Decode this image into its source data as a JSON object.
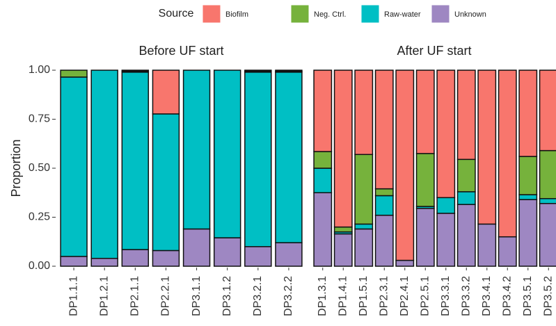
{
  "chart_data": {
    "type": "bar",
    "stacked": true,
    "legend_title": "Source",
    "ylabel": "Proportion",
    "ylim": [
      0,
      1
    ],
    "yticks": [
      {
        "value": 0,
        "label": "0.00"
      },
      {
        "value": 0.25,
        "label": "0.25"
      },
      {
        "value": 0.5,
        "label": "0.50"
      },
      {
        "value": 0.75,
        "label": "0.75"
      },
      {
        "value": 1,
        "label": "1.00"
      }
    ],
    "series": [
      {
        "name": "Biofilm",
        "color": "#f8766d"
      },
      {
        "name": "Neg. Ctrl.",
        "color": "#76b23c"
      },
      {
        "name": "Raw-water",
        "color": "#00bfc4"
      },
      {
        "name": "Unknown",
        "color": "#9e87c2"
      }
    ],
    "facets": [
      {
        "title": "Before UF start",
        "categories": [
          "DP1.1.1",
          "DP1.2.1",
          "DP2.1.1",
          "DP2.2.1",
          "DP3.1.1",
          "DP3.1.2",
          "DP3.2.1",
          "DP3.2.2"
        ],
        "series": [
          {
            "values": [
              0,
              0,
              0.005,
              0.223,
              0,
              0,
              0.005,
              0.005
            ]
          },
          {
            "values": [
              0.035,
              0,
              0.005,
              0,
              0,
              0,
              0.005,
              0.005
            ]
          },
          {
            "values": [
              0.915,
              0.96,
              0.905,
              0.697,
              0.81,
              0.855,
              0.89,
              0.87
            ]
          },
          {
            "values": [
              0.05,
              0.04,
              0.085,
              0.08,
              0.19,
              0.145,
              0.1,
              0.12
            ]
          }
        ]
      },
      {
        "title": "After UF start",
        "categories": [
          "DP1.3.1",
          "DP1.4.1",
          "DP1.5.1",
          "DP2.3.1",
          "DP2.4.1",
          "DP2.5.1",
          "DP3.3.1",
          "DP3.3.2",
          "DP3.4.1",
          "DP3.4.2",
          "DP3.5.1",
          "DP3.5.2"
        ],
        "series": [
          {
            "values": [
              0.415,
              0.8,
              0.43,
              0.605,
              0.97,
              0.425,
              0.65,
              0.455,
              0.785,
              0.85,
              0.44,
              0.41
            ]
          },
          {
            "values": [
              0.085,
              0.025,
              0.355,
              0.035,
              0,
              0.27,
              0,
              0.165,
              0,
              0,
              0.195,
              0.245
            ]
          },
          {
            "values": [
              0.125,
              0.01,
              0.025,
              0.1,
              0,
              0.01,
              0.08,
              0.065,
              0,
              0,
              0.025,
              0.025
            ]
          },
          {
            "values": [
              0.375,
              0.165,
              0.19,
              0.26,
              0.03,
              0.295,
              0.27,
              0.315,
              0.215,
              0.15,
              0.34,
              0.32
            ]
          }
        ]
      }
    ]
  }
}
